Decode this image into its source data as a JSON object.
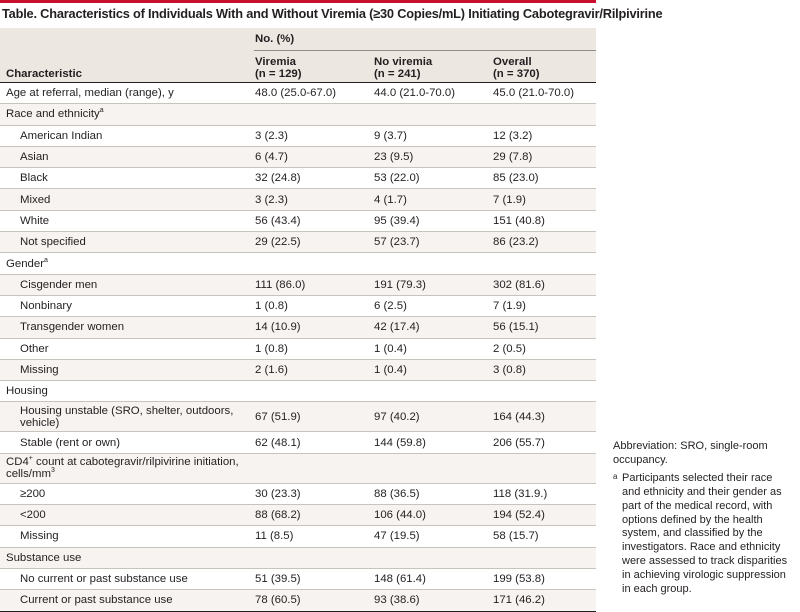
{
  "title": "Table. Characteristics of Individuals With and Without Viremia (≥30 Copies/mL) Initiating Cabotegravir/Rilpivirine",
  "table": {
    "group_label": "No. (%)",
    "characteristic_label": "Characteristic",
    "columns": [
      {
        "name": "Viremia",
        "n": "(n = 129)"
      },
      {
        "name": "No viremia",
        "n": "(n = 241)"
      },
      {
        "name": "Overall",
        "n": "(n = 370)"
      }
    ],
    "rows": [
      {
        "label": "Age at referral, median (range), y",
        "values": [
          "48.0 (25.0-67.0)",
          "44.0 (21.0-70.0)",
          "45.0 (21.0-70.0)"
        ]
      },
      {
        "label": "Race and ethnicity",
        "sup": "a"
      },
      {
        "label": "American Indian",
        "values": [
          "3 (2.3)",
          "9 (3.7)",
          "12 (3.2)"
        ]
      },
      {
        "label": "Asian",
        "values": [
          "6 (4.7)",
          "23 (9.5)",
          "29 (7.8)"
        ]
      },
      {
        "label": "Black",
        "values": [
          "32 (24.8)",
          "53 (22.0)",
          "85 (23.0)"
        ]
      },
      {
        "label": "Mixed",
        "values": [
          "3 (2.3)",
          "4 (1.7)",
          "7 (1.9)"
        ]
      },
      {
        "label": "White",
        "values": [
          "56 (43.4)",
          "95 (39.4)",
          "151 (40.8)"
        ]
      },
      {
        "label": "Not specified",
        "values": [
          "29 (22.5)",
          "57 (23.7)",
          "86 (23.2)"
        ]
      },
      {
        "label": "Gender",
        "sup": "a"
      },
      {
        "label": "Cisgender men",
        "values": [
          "111 (86.0)",
          "191 (79.3)",
          "302 (81.6)"
        ]
      },
      {
        "label": "Nonbinary",
        "values": [
          "1 (0.8)",
          "6 (2.5)",
          "7 (1.9)"
        ]
      },
      {
        "label": "Transgender women",
        "values": [
          "14 (10.9)",
          "42 (17.4)",
          "56 (15.1)"
        ]
      },
      {
        "label": "Other",
        "values": [
          "1 (0.8)",
          "1 (0.4)",
          "2 (0.5)"
        ]
      },
      {
        "label": "Missing",
        "values": [
          "2 (1.6)",
          "1 (0.4)",
          "3 (0.8)"
        ]
      },
      {
        "label": "Housing"
      },
      {
        "label": "Housing unstable (SRO, shelter, outdoors, vehicle)",
        "values": [
          "67 (51.9)",
          "97 (40.2)",
          "164 (44.3)"
        ]
      },
      {
        "label": "Stable (rent or own)",
        "values": [
          "62 (48.1)",
          "144 (59.8)",
          "206 (55.7)"
        ]
      },
      {
        "label_a": "CD4",
        "label_sup": "+",
        "label_b": " count at cabotegravir/rilpivirine initiation, cells/mm",
        "label_sup2": "3"
      },
      {
        "label": "≥200",
        "values": [
          "30 (23.3)",
          "88 (36.5)",
          "118 (31.9.)"
        ]
      },
      {
        "label": "<200",
        "values": [
          "88 (68.2)",
          "106 (44.0)",
          "194 (52.4)"
        ]
      },
      {
        "label": "Missing",
        "values": [
          "11 (8.5)",
          "47 (19.5)",
          "58 (15.7)"
        ]
      },
      {
        "label": "Substance use"
      },
      {
        "label": "No current or past substance use",
        "values": [
          "51 (39.5)",
          "148 (61.4)",
          "199 (53.8)"
        ]
      },
      {
        "label": "Current or past substance use",
        "values": [
          "78 (60.5)",
          "93 (38.6)",
          "171 (46.2)"
        ]
      }
    ]
  },
  "notes": {
    "abbreviation": "Abbreviation: SRO, single-room occupancy.",
    "footnote_mark": "a",
    "footnote": "Participants selected their race and ethnicity and their gender as part of the medical record, with options defined by the health system, and classified by the investigators. Race and ethnicity were assessed to track disparities in achieving virologic suppression in each group."
  },
  "colors": {
    "accent_rule": "#c8102e",
    "header_bg": "#ede7e1",
    "row_shade": "#f6f3f0"
  }
}
